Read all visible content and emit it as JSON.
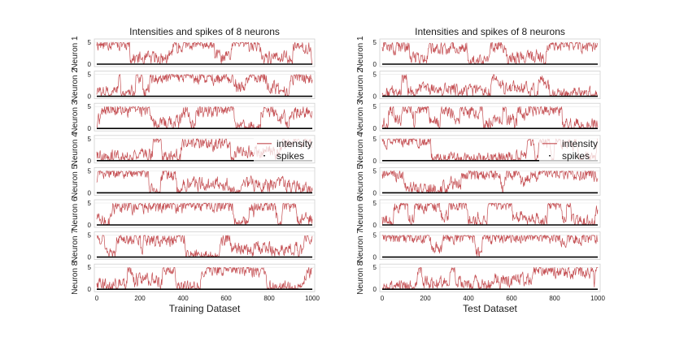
{
  "chart_data": [
    {
      "type": "line",
      "title": "Intensities and spikes of 8 neurons",
      "xlabel": "Training Dataset",
      "xlim": [
        0,
        1000
      ],
      "xticks": [
        0,
        200,
        400,
        600,
        800,
        1000
      ],
      "ylim": [
        0,
        5
      ],
      "yticks": [
        0,
        5
      ],
      "series": [
        {
          "name": "intensity",
          "color": "#c44e52"
        },
        {
          "name": "spikes",
          "color": "#000000"
        }
      ],
      "legend": {
        "position": "right",
        "entries": [
          "intensity",
          "spikes"
        ]
      },
      "neurons": [
        "Neuron 1",
        "Neuron 2",
        "Neuron 3",
        "Neuron 4",
        "Neuron 5",
        "Neuron 6",
        "Neuron 7",
        "Neuron 8"
      ],
      "legend_row": 3,
      "seed": 11
    },
    {
      "type": "line",
      "title": "Intensities and spikes of 8 neurons",
      "xlabel": "Test Dataset",
      "xlim": [
        0,
        1000
      ],
      "xticks": [
        0,
        200,
        400,
        600,
        800,
        1000
      ],
      "ylim": [
        0,
        5
      ],
      "yticks": [
        0,
        5
      ],
      "series": [
        {
          "name": "intensity",
          "color": "#c44e52"
        },
        {
          "name": "spikes",
          "color": "#000000"
        }
      ],
      "legend": {
        "position": "right",
        "entries": [
          "intensity",
          "spikes"
        ]
      },
      "neurons": [
        "Neuron 1",
        "Neuron 2",
        "Neuron 3",
        "Neuron 4",
        "Neuron 5",
        "Neuron 6",
        "Neuron 7",
        "Neuron 8"
      ],
      "legend_row": 3,
      "seed": 97
    }
  ]
}
